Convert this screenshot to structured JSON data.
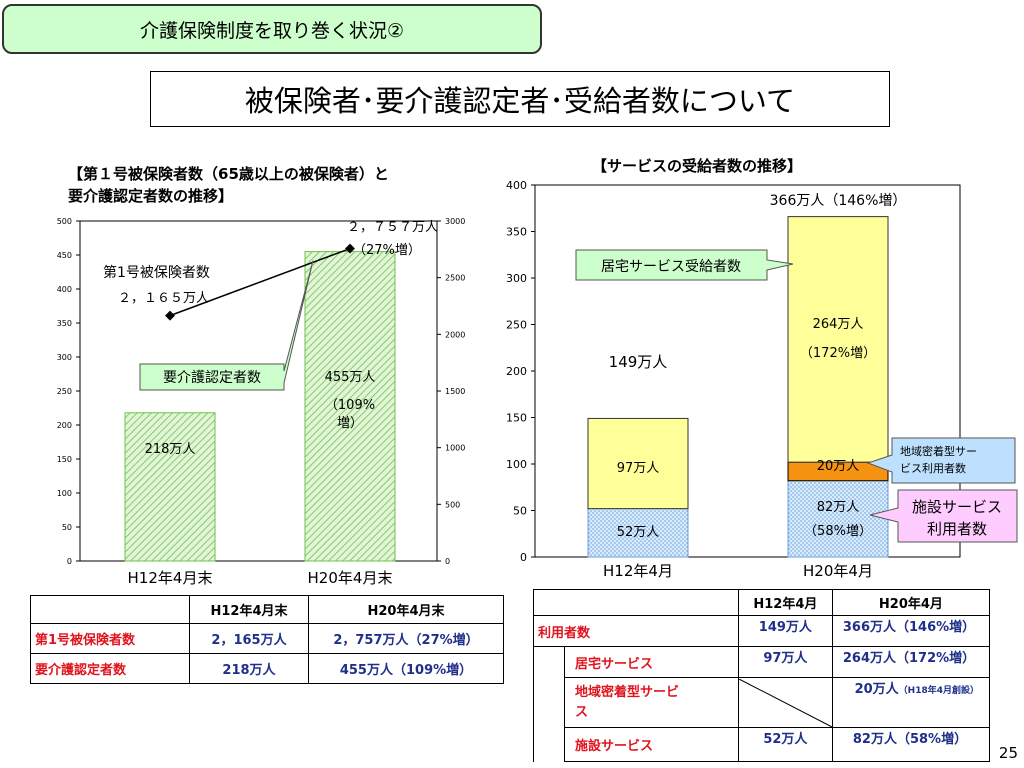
{
  "header": {
    "badge_text": "介護保険制度を取り巻く状況②"
  },
  "title": "被保険者･要介護認定者･受給者数について",
  "page_number": "25",
  "left_chart": {
    "title_line1": "【第１号被保険者数（65歳以上の被保険者）と",
    "title_line2": "要介護認定者数の推移】",
    "annotations": {
      "line_label": "第1号被保険者数",
      "h12_insured": "２，１６５万人",
      "h20_insured_1": "２，７５７万人",
      "h20_insured_2": "（27%増）",
      "bar_callout": "要介護認定者数",
      "h20_certified_1": "455万人",
      "h20_certified_2": "（109%",
      "h20_certified_3": "増）",
      "h12_certified": "218万人"
    }
  },
  "right_chart": {
    "title": "【サービスの受給者数の推移】",
    "annotations": {
      "h20_total": "366万人（146%増）",
      "h12_total": "149万人",
      "home_callout": "居宅サービス受給者数",
      "community_callout_1": "地域密着型サー",
      "community_callout_2": "ビス利用者数",
      "facility_callout_1": "施設サービス",
      "facility_callout_2": "利用者数",
      "h20_home_1": "264万人",
      "h20_home_2": "（172%増）",
      "h20_community": "20万人",
      "h20_facility_1": "82万人",
      "h20_facility_2": "（58%増）",
      "h12_home": "97万人",
      "h12_facility": "52万人"
    }
  },
  "chart_data": [
    {
      "type": "bar",
      "categories": [
        "H12年4月末",
        "H20年4月末"
      ],
      "series": [
        {
          "name": "要介護認定者数",
          "axis": "left",
          "type": "bar",
          "values": [
            218,
            455
          ]
        },
        {
          "name": "第1号被保険者数",
          "axis": "right",
          "type": "line",
          "values": [
            2165,
            2757
          ]
        }
      ],
      "ylim": [
        0,
        500
      ],
      "y_ticks": [
        0,
        50,
        100,
        150,
        200,
        250,
        300,
        350,
        400,
        450,
        500
      ],
      "y2lim": [
        0,
        3000
      ],
      "y2_ticks": [
        0,
        500,
        1000,
        1500,
        2000,
        2500,
        3000
      ],
      "grid": false,
      "colors": {
        "bar_fill": "#e3f5d8",
        "bar_hatch": "#6cc24a",
        "line": "#000000"
      }
    },
    {
      "type": "bar",
      "stacked": true,
      "categories": [
        "H12年4月",
        "H20年4月"
      ],
      "series": [
        {
          "name": "施設サービス利用者数",
          "values": [
            52,
            82
          ],
          "color": "#d8ecff"
        },
        {
          "name": "地域密着型サービス利用者数",
          "values": [
            0,
            20
          ],
          "color": "#f5920f"
        },
        {
          "name": "居宅サービス受給者数",
          "values": [
            97,
            264
          ],
          "color": "#ffff99"
        }
      ],
      "ylim": [
        0,
        400
      ],
      "y_ticks": [
        0,
        50,
        100,
        150,
        200,
        250,
        300,
        350,
        400
      ],
      "grid": false
    }
  ],
  "left_table": {
    "headers": [
      "",
      "H12年4月末",
      "H20年4月末"
    ],
    "rows": [
      {
        "label": "第1号被保険者数",
        "h12": "2，165万人",
        "h20": "2，757万人（27%増）"
      },
      {
        "label": "要介護認定者数",
        "h12": "218万人",
        "h20": "455万人（109%増）"
      }
    ]
  },
  "right_table": {
    "headers": [
      "",
      "H12年4月",
      "H20年4月"
    ],
    "rows": [
      {
        "label": "利用者数",
        "h12": "149万人",
        "h20": "366万人（146%増）"
      },
      {
        "label": "居宅サービス",
        "h12": "97万人",
        "h20": "264万人（172%増）"
      },
      {
        "label_1": "地域密着型サービ",
        "label_2": "ス",
        "h12": "",
        "h20_main": "20万人",
        "h20_note": "（H18年4月創設）"
      },
      {
        "label": "施設サービス",
        "h12": "52万人",
        "h20": "82万人（58%増）"
      }
    ]
  }
}
